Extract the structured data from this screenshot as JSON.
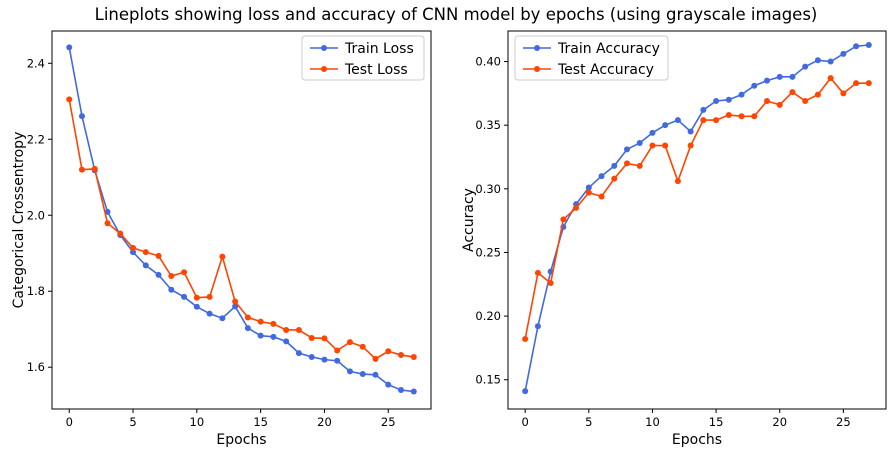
{
  "title": "Lineplots showing loss and accuracy of CNN model by epochs (using grayscale images)",
  "colors": {
    "train": "#4169E1",
    "test": "#FF4500",
    "legend_border": "#cccccc"
  },
  "chart_data": [
    {
      "type": "line",
      "xlabel": "Epochs",
      "ylabel": "Categorical Crossentropy",
      "xlim": [
        -1.35,
        28.35
      ],
      "ylim": [
        1.49,
        2.485
      ],
      "xticks": [
        0,
        5,
        10,
        15,
        20,
        25
      ],
      "yticks": [
        1.6,
        1.8,
        2.0,
        2.2,
        2.4
      ],
      "ytick_labels": [
        "1.6",
        "1.8",
        "2.0",
        "2.2",
        "2.4"
      ],
      "grid": false,
      "legend_position": "top-right",
      "x": [
        0,
        1,
        2,
        3,
        4,
        5,
        6,
        7,
        8,
        9,
        10,
        11,
        12,
        13,
        14,
        15,
        16,
        17,
        18,
        19,
        20,
        21,
        22,
        23,
        24,
        25,
        26,
        27
      ],
      "series": [
        {
          "name": "Train Loss",
          "values": [
            2.442,
            2.261,
            2.118,
            2.009,
            1.948,
            1.903,
            1.868,
            1.843,
            1.804,
            1.785,
            1.759,
            1.741,
            1.729,
            1.76,
            1.703,
            1.683,
            1.68,
            1.668,
            1.637,
            1.627,
            1.62,
            1.617,
            1.589,
            1.582,
            1.58,
            1.554,
            1.54,
            1.536
          ]
        },
        {
          "name": "Test Loss",
          "values": [
            2.305,
            2.12,
            2.122,
            1.979,
            1.952,
            1.914,
            1.903,
            1.893,
            1.84,
            1.85,
            1.783,
            1.785,
            1.891,
            1.773,
            1.731,
            1.72,
            1.714,
            1.698,
            1.698,
            1.677,
            1.676,
            1.644,
            1.666,
            1.654,
            1.622,
            1.642,
            1.632,
            1.627
          ]
        }
      ]
    },
    {
      "type": "line",
      "xlabel": "Epochs",
      "ylabel": "Accuracy",
      "xlim": [
        -1.35,
        28.35
      ],
      "ylim": [
        0.127,
        0.424
      ],
      "xticks": [
        0,
        5,
        10,
        15,
        20,
        25
      ],
      "yticks": [
        0.15,
        0.2,
        0.25,
        0.3,
        0.35,
        0.4
      ],
      "ytick_labels": [
        "0.15",
        "0.20",
        "0.25",
        "0.30",
        "0.35",
        "0.40"
      ],
      "grid": false,
      "legend_position": "top-left",
      "x": [
        0,
        1,
        2,
        3,
        4,
        5,
        6,
        7,
        8,
        9,
        10,
        11,
        12,
        13,
        14,
        15,
        16,
        17,
        18,
        19,
        20,
        21,
        22,
        23,
        24,
        25,
        26,
        27
      ],
      "series": [
        {
          "name": "Train Accuracy",
          "values": [
            0.141,
            0.192,
            0.235,
            0.27,
            0.288,
            0.301,
            0.31,
            0.318,
            0.331,
            0.336,
            0.344,
            0.35,
            0.354,
            0.345,
            0.362,
            0.369,
            0.37,
            0.374,
            0.381,
            0.385,
            0.388,
            0.388,
            0.396,
            0.401,
            0.4,
            0.406,
            0.412,
            0.413
          ]
        },
        {
          "name": "Test Accuracy",
          "values": [
            0.182,
            0.234,
            0.226,
            0.276,
            0.285,
            0.297,
            0.294,
            0.308,
            0.32,
            0.318,
            0.334,
            0.334,
            0.306,
            0.334,
            0.354,
            0.354,
            0.358,
            0.357,
            0.357,
            0.369,
            0.366,
            0.376,
            0.369,
            0.374,
            0.387,
            0.375,
            0.383,
            0.383
          ]
        }
      ]
    }
  ]
}
